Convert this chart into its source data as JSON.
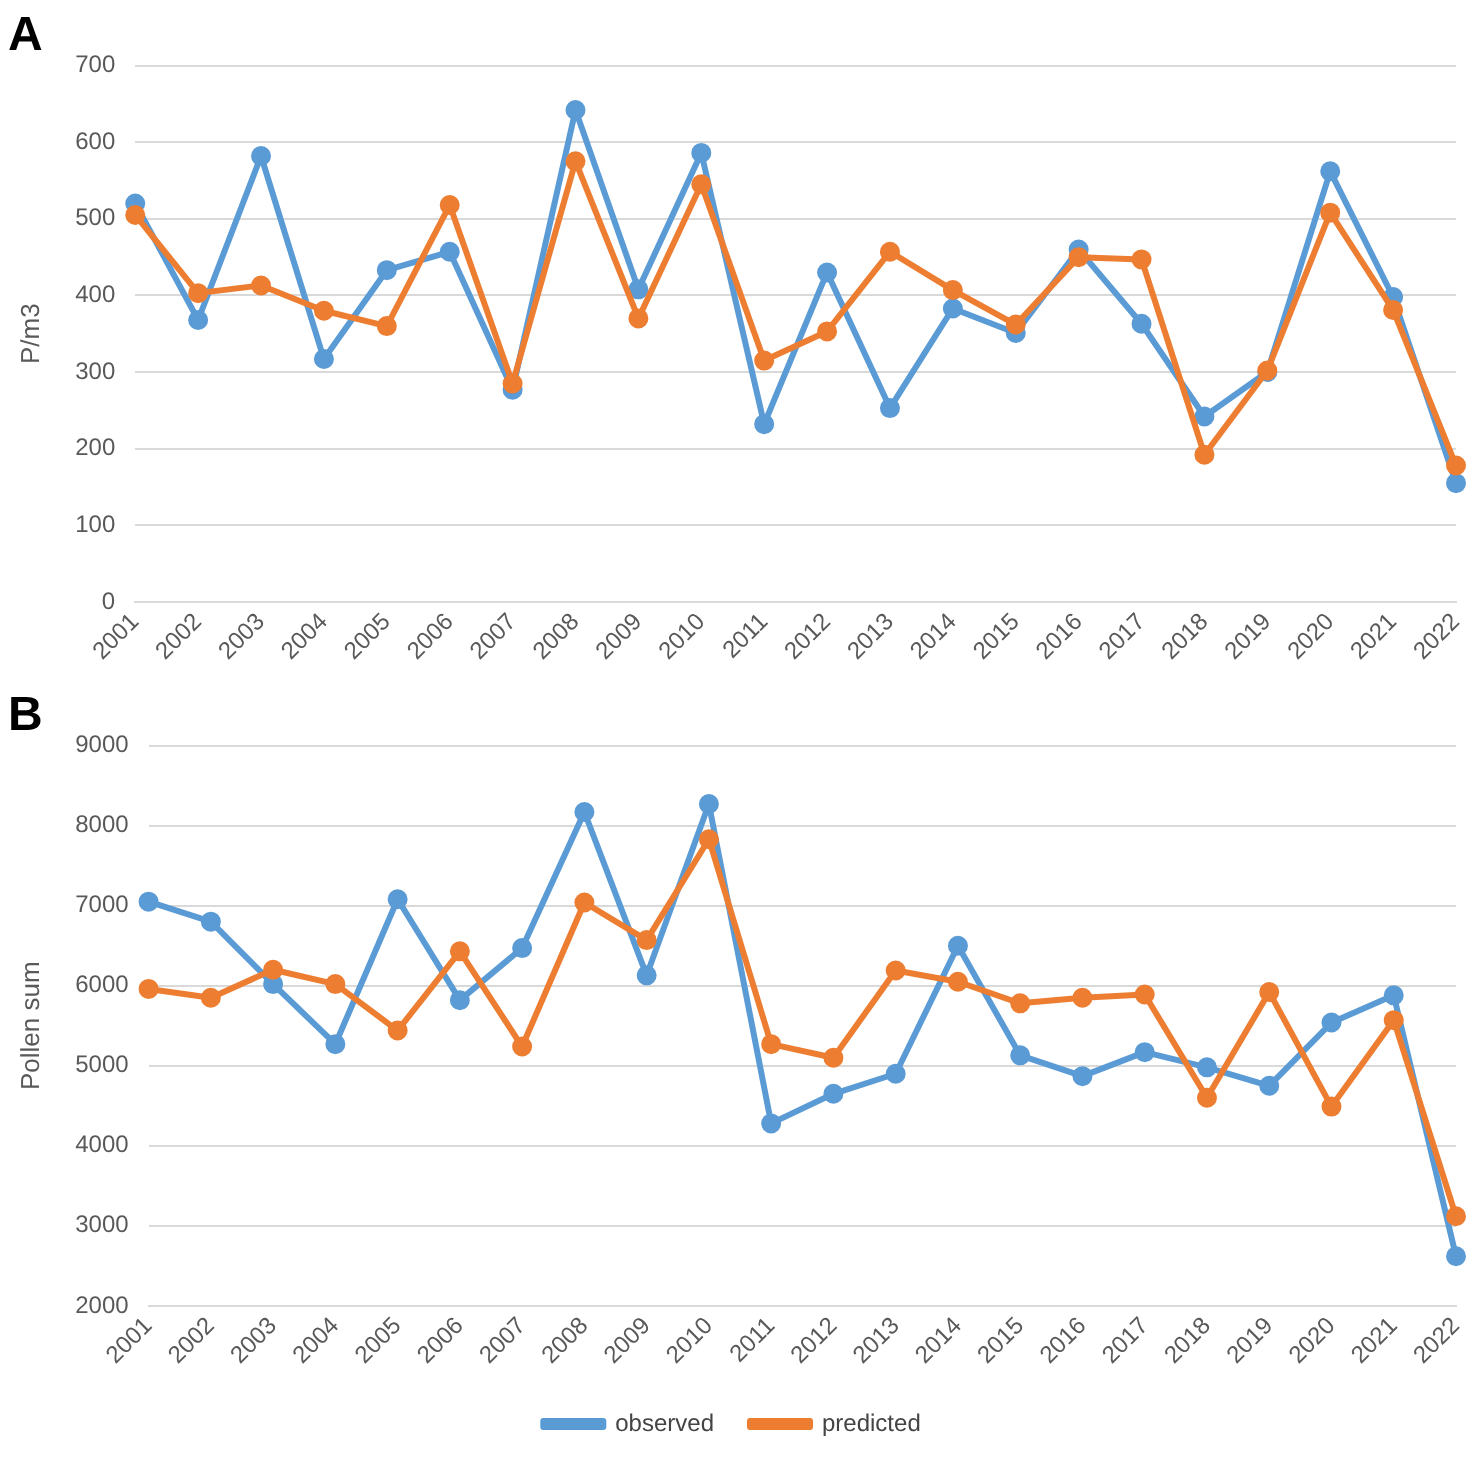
{
  "chart_data": [
    {
      "type": "line",
      "title": "A",
      "ylabel": "P/m3",
      "categories": [
        "2001",
        "2002",
        "2003",
        "2004",
        "2005",
        "2006",
        "2007",
        "2008",
        "2009",
        "2010",
        "2011",
        "2012",
        "2013",
        "2014",
        "2015",
        "2016",
        "2017",
        "2018",
        "2019",
        "2020",
        "2021",
        "2022"
      ],
      "series": [
        {
          "color": "#5b9bd5",
          "values": [
            520,
            368,
            582,
            317,
            433,
            457,
            277,
            642,
            408,
            586,
            232,
            430,
            253,
            383,
            351,
            460,
            363,
            242,
            300,
            562,
            398,
            155
          ]
        },
        {
          "color": "#ed7d31",
          "values": [
            505,
            403,
            413,
            380,
            360,
            518,
            285,
            575,
            370,
            545,
            315,
            353,
            457,
            407,
            362,
            450,
            447,
            192,
            302,
            508,
            381,
            178
          ]
        }
      ],
      "ylim": [
        0,
        700
      ],
      "yticks": [
        0,
        100,
        200,
        300,
        400,
        500,
        600,
        700
      ],
      "grid": "y",
      "legend": false,
      "marker": "circle",
      "line_style": "solid"
    },
    {
      "type": "line",
      "title": "B",
      "ylabel": "Pollen sum",
      "categories": [
        "2001",
        "2002",
        "2003",
        "2004",
        "2005",
        "2006",
        "2007",
        "2008",
        "2009",
        "2010",
        "2011",
        "2012",
        "2013",
        "2014",
        "2015",
        "2016",
        "2017",
        "2018",
        "2019",
        "2020",
        "2021",
        "2022"
      ],
      "series": [
        {
          "name": "observed",
          "color": "#5b9bd5",
          "values": [
            7050,
            6800,
            6020,
            5270,
            7080,
            5820,
            6470,
            8170,
            6130,
            8270,
            4280,
            4650,
            4900,
            6500,
            5130,
            4870,
            5170,
            4980,
            4750,
            5540,
            5880,
            2620
          ]
        },
        {
          "name": "predicted",
          "color": "#ed7d31",
          "values": [
            5960,
            5850,
            6200,
            6020,
            5440,
            6430,
            5240,
            7040,
            6570,
            7830,
            5270,
            5100,
            6190,
            6050,
            5780,
            5850,
            5890,
            4600,
            5920,
            4490,
            5570,
            3120
          ]
        }
      ],
      "ylim": [
        2000,
        9000
      ],
      "yticks": [
        2000,
        3000,
        4000,
        5000,
        6000,
        7000,
        8000,
        9000
      ],
      "grid": "y",
      "legend": "bottom",
      "marker": "circle",
      "line_style": "solid"
    }
  ]
}
